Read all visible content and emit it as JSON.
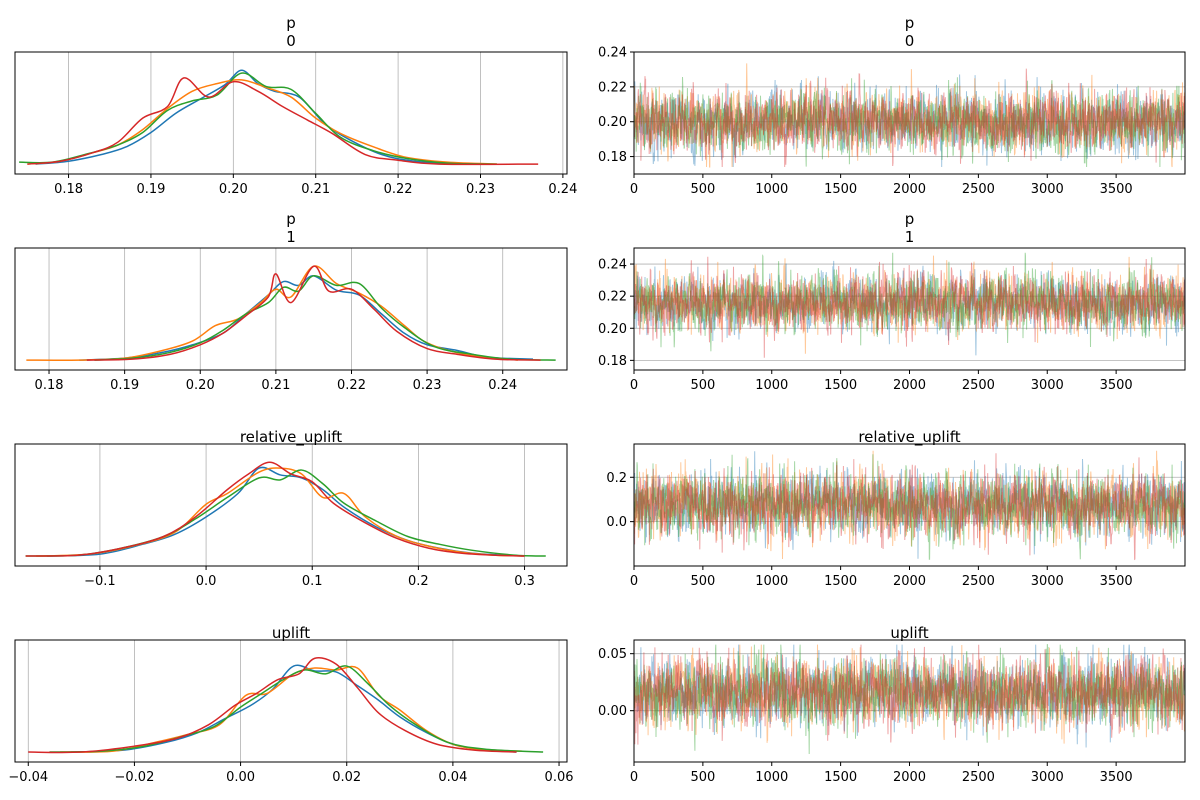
{
  "chart_data": [
    {
      "type": "line",
      "kind": "density",
      "title_lines": [
        "p",
        "0"
      ],
      "xlabel": "",
      "ylabel": "",
      "xlim": [
        0.1735,
        0.2405
      ],
      "x_ticks": [
        0.18,
        0.19,
        0.2,
        0.21,
        0.22,
        0.23,
        0.24
      ],
      "x_tick_labels": [
        "0.18",
        "0.19",
        "0.20",
        "0.21",
        "0.22",
        "0.23",
        "0.24"
      ],
      "y_ticks": [],
      "grid": "x",
      "series": [
        {
          "color": "#1f77b4",
          "x": [
            0.176,
            0.18,
            0.184,
            0.187,
            0.19,
            0.193,
            0.196,
            0.199,
            0.201,
            0.203,
            0.205,
            0.208,
            0.211,
            0.214,
            0.218,
            0.222,
            0.228
          ],
          "y": [
            0.02,
            0.05,
            0.12,
            0.2,
            0.35,
            0.55,
            0.7,
            0.85,
            1.0,
            0.86,
            0.78,
            0.72,
            0.45,
            0.28,
            0.12,
            0.05,
            0.02
          ]
        },
        {
          "color": "#ff7f0e",
          "x": [
            0.175,
            0.179,
            0.183,
            0.186,
            0.189,
            0.192,
            0.195,
            0.198,
            0.201,
            0.204,
            0.207,
            0.21,
            0.213,
            0.217,
            0.221,
            0.226,
            0.232
          ],
          "y": [
            0.02,
            0.05,
            0.14,
            0.22,
            0.38,
            0.6,
            0.78,
            0.86,
            0.9,
            0.82,
            0.72,
            0.5,
            0.34,
            0.2,
            0.09,
            0.04,
            0.02
          ]
        },
        {
          "color": "#2ca02c",
          "x": [
            0.174,
            0.178,
            0.182,
            0.186,
            0.189,
            0.192,
            0.195,
            0.198,
            0.201,
            0.204,
            0.207,
            0.21,
            0.213,
            0.217,
            0.221,
            0.226,
            0.232
          ],
          "y": [
            0.04,
            0.04,
            0.12,
            0.22,
            0.35,
            0.58,
            0.68,
            0.74,
            0.97,
            0.83,
            0.8,
            0.55,
            0.3,
            0.16,
            0.08,
            0.03,
            0.02
          ]
        },
        {
          "color": "#d62728",
          "x": [
            0.175,
            0.179,
            0.183,
            0.186,
            0.189,
            0.192,
            0.194,
            0.197,
            0.2,
            0.203,
            0.206,
            0.209,
            0.212,
            0.216,
            0.22,
            0.225,
            0.237
          ],
          "y": [
            0.02,
            0.05,
            0.14,
            0.25,
            0.5,
            0.62,
            0.92,
            0.72,
            0.88,
            0.78,
            0.62,
            0.48,
            0.34,
            0.12,
            0.06,
            0.02,
            0.02
          ]
        }
      ]
    },
    {
      "type": "line",
      "kind": "trace",
      "title_lines": [
        "p",
        "0"
      ],
      "xlabel": "",
      "ylabel": "",
      "xlim": [
        0,
        4000
      ],
      "ylim": [
        0.17,
        0.24
      ],
      "x_ticks": [
        0,
        500,
        1000,
        1500,
        2000,
        2500,
        3000,
        3500
      ],
      "x_tick_labels": [
        "0",
        "500",
        "1000",
        "1500",
        "2000",
        "2500",
        "3000",
        "3500"
      ],
      "y_ticks": [
        0.18,
        0.2,
        0.22,
        0.24
      ],
      "y_tick_labels": [
        "0.18",
        "0.20",
        "0.22",
        "0.24"
      ],
      "grid": "y",
      "trace": {
        "n_draws": 4000,
        "center": 0.2,
        "spread": 0.0085,
        "range": [
          0.174,
          0.238
        ]
      },
      "series": [
        {
          "color": "#1f77b4"
        },
        {
          "color": "#ff7f0e"
        },
        {
          "color": "#2ca02c"
        },
        {
          "color": "#d62728"
        }
      ]
    },
    {
      "type": "line",
      "kind": "density",
      "title_lines": [
        "p",
        "1"
      ],
      "xlabel": "",
      "ylabel": "",
      "xlim": [
        0.1755,
        0.2485
      ],
      "x_ticks": [
        0.18,
        0.19,
        0.2,
        0.21,
        0.22,
        0.23,
        0.24,
        0.25
      ],
      "x_tick_labels": [
        "0.18",
        "0.19",
        "0.20",
        "0.21",
        "0.22",
        "0.23",
        "0.24",
        "0.25"
      ],
      "y_ticks": [],
      "grid": "x",
      "series": [
        {
          "color": "#1f77b4",
          "x": [
            0.184,
            0.19,
            0.195,
            0.199,
            0.203,
            0.206,
            0.209,
            0.211,
            0.213,
            0.215,
            0.218,
            0.221,
            0.224,
            0.227,
            0.23,
            0.234,
            0.238,
            0.244
          ],
          "y": [
            0.02,
            0.04,
            0.1,
            0.18,
            0.3,
            0.5,
            0.7,
            0.84,
            0.8,
            0.9,
            0.75,
            0.7,
            0.5,
            0.3,
            0.18,
            0.12,
            0.05,
            0.03
          ]
        },
        {
          "color": "#ff7f0e",
          "x": [
            0.177,
            0.184,
            0.19,
            0.195,
            0.199,
            0.202,
            0.205,
            0.208,
            0.21,
            0.212,
            0.215,
            0.218,
            0.221,
            0.224,
            0.227,
            0.23,
            0.235,
            0.242
          ],
          "y": [
            0.02,
            0.02,
            0.04,
            0.12,
            0.22,
            0.38,
            0.45,
            0.62,
            0.76,
            0.68,
            1.0,
            0.82,
            0.72,
            0.58,
            0.38,
            0.2,
            0.08,
            0.02
          ]
        },
        {
          "color": "#2ca02c",
          "x": [
            0.186,
            0.191,
            0.196,
            0.2,
            0.203,
            0.206,
            0.209,
            0.211,
            0.213,
            0.215,
            0.218,
            0.221,
            0.224,
            0.227,
            0.231,
            0.236,
            0.241,
            0.247
          ],
          "y": [
            0.02,
            0.04,
            0.1,
            0.2,
            0.33,
            0.5,
            0.62,
            0.78,
            0.74,
            0.9,
            0.8,
            0.82,
            0.56,
            0.36,
            0.16,
            0.08,
            0.03,
            0.02
          ]
        },
        {
          "color": "#d62728",
          "x": [
            0.185,
            0.191,
            0.196,
            0.2,
            0.203,
            0.206,
            0.209,
            0.21,
            0.212,
            0.215,
            0.217,
            0.22,
            0.223,
            0.226,
            0.23,
            0.234,
            0.239,
            0.245
          ],
          "y": [
            0.02,
            0.03,
            0.08,
            0.18,
            0.3,
            0.48,
            0.68,
            0.92,
            0.62,
            1.0,
            0.74,
            0.76,
            0.55,
            0.32,
            0.14,
            0.08,
            0.03,
            0.02
          ]
        }
      ]
    },
    {
      "type": "line",
      "kind": "trace",
      "title_lines": [
        "p",
        "1"
      ],
      "xlabel": "",
      "ylabel": "",
      "xlim": [
        0,
        4000
      ],
      "ylim": [
        0.174,
        0.25
      ],
      "x_ticks": [
        0,
        500,
        1000,
        1500,
        2000,
        2500,
        3000,
        3500
      ],
      "x_tick_labels": [
        "0",
        "500",
        "1000",
        "1500",
        "2000",
        "2500",
        "3000",
        "3500"
      ],
      "y_ticks": [
        0.18,
        0.2,
        0.22,
        0.24
      ],
      "y_tick_labels": [
        "0.18",
        "0.20",
        "0.22",
        "0.24"
      ],
      "grid": "y",
      "trace": {
        "n_draws": 4000,
        "center": 0.216,
        "spread": 0.0085,
        "range": [
          0.177,
          0.247
        ]
      },
      "series": [
        {
          "color": "#1f77b4"
        },
        {
          "color": "#ff7f0e"
        },
        {
          "color": "#2ca02c"
        },
        {
          "color": "#d62728"
        }
      ]
    },
    {
      "type": "line",
      "kind": "density",
      "title_lines": [
        "relative_uplift"
      ],
      "xlabel": "",
      "ylabel": "",
      "xlim": [
        -0.18,
        0.34
      ],
      "x_ticks": [
        -0.1,
        0.0,
        0.1,
        0.2,
        0.3
      ],
      "x_tick_labels": [
        "−0.1",
        "0.0",
        "0.1",
        "0.2",
        "0.3"
      ],
      "y_ticks": [],
      "grid": "x",
      "series": [
        {
          "color": "#1f77b4",
          "x": [
            -0.15,
            -0.1,
            -0.06,
            -0.03,
            0.0,
            0.03,
            0.05,
            0.07,
            0.09,
            0.11,
            0.13,
            0.16,
            0.19,
            0.22,
            0.25,
            0.28,
            0.3
          ],
          "y": [
            0.02,
            0.04,
            0.14,
            0.24,
            0.42,
            0.66,
            0.92,
            0.85,
            0.82,
            0.7,
            0.52,
            0.32,
            0.18,
            0.1,
            0.05,
            0.03,
            0.02
          ]
        },
        {
          "color": "#ff7f0e",
          "x": [
            -0.16,
            -0.11,
            -0.07,
            -0.03,
            0.0,
            0.02,
            0.05,
            0.07,
            0.09,
            0.11,
            0.13,
            0.15,
            0.18,
            0.21,
            0.24,
            0.27,
            0.3
          ],
          "y": [
            0.02,
            0.04,
            0.12,
            0.26,
            0.55,
            0.66,
            0.88,
            0.92,
            0.86,
            0.62,
            0.66,
            0.42,
            0.22,
            0.12,
            0.06,
            0.03,
            0.02
          ]
        },
        {
          "color": "#2ca02c",
          "x": [
            -0.17,
            -0.12,
            -0.08,
            -0.04,
            -0.01,
            0.02,
            0.05,
            0.07,
            0.09,
            0.11,
            0.13,
            0.16,
            0.19,
            0.22,
            0.25,
            0.29,
            0.32
          ],
          "y": [
            0.02,
            0.03,
            0.1,
            0.22,
            0.4,
            0.62,
            0.82,
            0.8,
            0.9,
            0.76,
            0.56,
            0.38,
            0.22,
            0.14,
            0.08,
            0.03,
            0.02
          ]
        },
        {
          "color": "#d62728",
          "x": [
            -0.17,
            -0.12,
            -0.08,
            -0.04,
            -0.01,
            0.02,
            0.04,
            0.06,
            0.08,
            0.1,
            0.12,
            0.15,
            0.18,
            0.21,
            0.24,
            0.27,
            0.3
          ],
          "y": [
            0.02,
            0.03,
            0.1,
            0.22,
            0.42,
            0.7,
            0.86,
            0.98,
            0.86,
            0.78,
            0.56,
            0.36,
            0.2,
            0.1,
            0.05,
            0.03,
            0.02
          ]
        }
      ]
    },
    {
      "type": "line",
      "kind": "trace",
      "title_lines": [
        "relative_uplift"
      ],
      "xlabel": "",
      "ylabel": "",
      "xlim": [
        0,
        4000
      ],
      "ylim": [
        -0.2,
        0.35
      ],
      "x_ticks": [
        0,
        500,
        1000,
        1500,
        2000,
        2500,
        3000,
        3500
      ],
      "x_tick_labels": [
        "0",
        "500",
        "1000",
        "1500",
        "2000",
        "2500",
        "3000",
        "3500"
      ],
      "y_ticks": [
        0.0,
        0.2
      ],
      "y_tick_labels": [
        "0.0",
        "0.2"
      ],
      "grid": "y",
      "trace": {
        "n_draws": 4000,
        "center": 0.075,
        "spread": 0.07,
        "range": [
          -0.17,
          0.32
        ]
      },
      "series": [
        {
          "color": "#1f77b4"
        },
        {
          "color": "#ff7f0e"
        },
        {
          "color": "#2ca02c"
        },
        {
          "color": "#d62728"
        }
      ]
    },
    {
      "type": "line",
      "kind": "density",
      "title_lines": [
        "uplift"
      ],
      "xlabel": "",
      "ylabel": "",
      "xlim": [
        -0.0425,
        0.0615
      ],
      "x_ticks": [
        -0.04,
        -0.02,
        0.0,
        0.02,
        0.04,
        0.06
      ],
      "x_tick_labels": [
        "−0.04",
        "−0.02",
        "0.00",
        "0.02",
        "0.04",
        "0.06"
      ],
      "y_ticks": [],
      "grid": "x",
      "series": [
        {
          "color": "#1f77b4",
          "x": [
            -0.032,
            -0.022,
            -0.014,
            -0.008,
            -0.003,
            0.002,
            0.006,
            0.01,
            0.014,
            0.018,
            0.022,
            0.026,
            0.03,
            0.035,
            0.04,
            0.045,
            0.052
          ],
          "y": [
            0.02,
            0.04,
            0.12,
            0.22,
            0.36,
            0.5,
            0.66,
            0.9,
            0.85,
            0.84,
            0.7,
            0.55,
            0.38,
            0.22,
            0.1,
            0.05,
            0.02
          ]
        },
        {
          "color": "#ff7f0e",
          "x": [
            -0.034,
            -0.024,
            -0.016,
            -0.01,
            -0.004,
            0.001,
            0.005,
            0.01,
            0.014,
            0.018,
            0.022,
            0.026,
            0.03,
            0.035,
            0.04,
            0.046,
            0.053
          ],
          "y": [
            0.02,
            0.03,
            0.12,
            0.2,
            0.3,
            0.6,
            0.62,
            0.82,
            0.88,
            0.86,
            0.88,
            0.6,
            0.45,
            0.24,
            0.1,
            0.04,
            0.03
          ]
        },
        {
          "color": "#2ca02c",
          "x": [
            -0.036,
            -0.026,
            -0.018,
            -0.011,
            -0.005,
            0.0,
            0.004,
            0.008,
            0.012,
            0.016,
            0.02,
            0.024,
            0.028,
            0.033,
            0.039,
            0.046,
            0.057
          ],
          "y": [
            0.02,
            0.03,
            0.08,
            0.18,
            0.28,
            0.48,
            0.62,
            0.76,
            0.86,
            0.82,
            0.9,
            0.72,
            0.5,
            0.3,
            0.12,
            0.05,
            0.02
          ]
        },
        {
          "color": "#d62728",
          "x": [
            -0.04,
            -0.03,
            -0.02,
            -0.012,
            -0.006,
            -0.001,
            0.003,
            0.007,
            0.011,
            0.014,
            0.018,
            0.022,
            0.026,
            0.031,
            0.037,
            0.044,
            0.052
          ],
          "y": [
            0.02,
            0.02,
            0.08,
            0.16,
            0.3,
            0.5,
            0.62,
            0.76,
            0.82,
            0.98,
            0.92,
            0.68,
            0.42,
            0.24,
            0.1,
            0.04,
            0.02
          ]
        }
      ]
    },
    {
      "type": "line",
      "kind": "trace",
      "title_lines": [
        "uplift"
      ],
      "xlabel": "",
      "ylabel": "",
      "xlim": [
        0,
        4000
      ],
      "ylim": [
        -0.045,
        0.062
      ],
      "x_ticks": [
        0,
        500,
        1000,
        1500,
        2000,
        2500,
        3000,
        3500
      ],
      "x_tick_labels": [
        "0",
        "500",
        "1000",
        "1500",
        "2000",
        "2500",
        "3000",
        "3500"
      ],
      "y_ticks": [
        0.0,
        0.05
      ],
      "y_tick_labels": [
        "0.00",
        "0.05"
      ],
      "grid": "y",
      "trace": {
        "n_draws": 4000,
        "center": 0.016,
        "spread": 0.0145,
        "range": [
          -0.04,
          0.058
        ]
      },
      "series": [
        {
          "color": "#1f77b4"
        },
        {
          "color": "#ff7f0e"
        },
        {
          "color": "#2ca02c"
        },
        {
          "color": "#d62728"
        }
      ]
    }
  ]
}
